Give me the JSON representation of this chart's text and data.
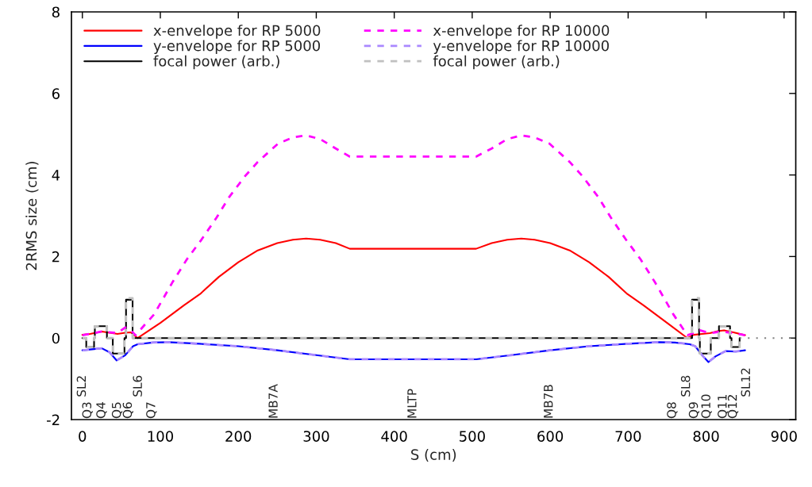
{
  "chart_data": {
    "type": "line",
    "xlabel": "S (cm)",
    "ylabel": "2RMS size (cm)",
    "xlim": [
      -14,
      915
    ],
    "ylim": [
      -2,
      8
    ],
    "xticks": [
      0,
      100,
      200,
      300,
      400,
      500,
      600,
      700,
      800,
      900
    ],
    "yticks": [
      -2,
      0,
      2,
      4,
      6,
      8
    ],
    "grid": false,
    "legend": "top left",
    "series": [
      {
        "name": "x-envelope for RP 5000",
        "color": "#ff0000",
        "line_style": "solid",
        "x": [
          0,
          10,
          25,
          35,
          45,
          55,
          62,
          71,
          100,
          130,
          151,
          175,
          200,
          225,
          250,
          270,
          287,
          305,
          325,
          343,
          505,
          525,
          545,
          563,
          580,
          600,
          625,
          650,
          675,
          699,
          720,
          750,
          776,
          784,
          795,
          805,
          815,
          823,
          835,
          850
        ],
        "values": [
          0.08,
          0.1,
          0.16,
          0.13,
          0.1,
          0.13,
          0.14,
          0.0,
          0.37,
          0.8,
          1.08,
          1.5,
          1.86,
          2.15,
          2.33,
          2.41,
          2.44,
          2.41,
          2.33,
          2.19,
          2.19,
          2.33,
          2.41,
          2.44,
          2.41,
          2.33,
          2.15,
          1.86,
          1.5,
          1.08,
          0.8,
          0.37,
          0.0,
          0.08,
          0.1,
          0.12,
          0.17,
          0.19,
          0.14,
          0.07
        ]
      },
      {
        "name": "y-envelope for RP 5000",
        "color": "#0000ff",
        "line_style": "solid",
        "x": [
          0,
          15,
          25,
          35,
          44,
          55,
          65,
          71,
          90,
          110,
          150,
          200,
          250,
          300,
          343,
          505,
          550,
          600,
          650,
          700,
          740,
          760,
          779,
          786,
          795,
          803,
          812,
          825,
          838,
          850
        ],
        "values": [
          -0.3,
          -0.27,
          -0.25,
          -0.35,
          -0.55,
          -0.42,
          -0.2,
          -0.15,
          -0.11,
          -0.1,
          -0.14,
          -0.2,
          -0.3,
          -0.42,
          -0.52,
          -0.52,
          -0.42,
          -0.3,
          -0.2,
          -0.14,
          -0.1,
          -0.11,
          -0.15,
          -0.2,
          -0.42,
          -0.59,
          -0.45,
          -0.32,
          -0.33,
          -0.3
        ]
      },
      {
        "name": "focal power (arb.)",
        "color": "#000000",
        "type": "step",
        "line_style": "solid",
        "x": [
          0,
          5,
          15,
          16,
          31.5,
          39,
          54,
          56,
          64.4,
          782,
          791,
          792,
          806,
          816.5,
          830.7,
          832.6,
          843
        ],
        "values": [
          0,
          -0.22,
          0,
          0.29,
          0,
          -0.38,
          0,
          0.94,
          0,
          0.94,
          0,
          -0.38,
          0,
          0.29,
          0,
          -0.22,
          0
        ]
      },
      {
        "name": "x-envelope for RP 10000",
        "color": "#ff00ff",
        "line_style": "dashed",
        "x": [
          0,
          25,
          45,
          55,
          62,
          68,
          92,
          115,
          134,
          153,
          172,
          188,
          209,
          225,
          251,
          270,
          287,
          305,
          325,
          343,
          505,
          525,
          545,
          563,
          580,
          599,
          625,
          641,
          662,
          678,
          697,
          716,
          735,
          758,
          776,
          784,
          792,
          805,
          820,
          835,
          850
        ],
        "values": [
          0.07,
          0.16,
          0.12,
          0.26,
          0.2,
          0.07,
          0.58,
          1.35,
          1.93,
          2.42,
          2.95,
          3.45,
          3.98,
          4.32,
          4.77,
          4.92,
          4.97,
          4.88,
          4.65,
          4.45,
          4.45,
          4.65,
          4.88,
          4.97,
          4.92,
          4.77,
          4.32,
          3.98,
          3.45,
          2.95,
          2.42,
          1.93,
          1.35,
          0.58,
          0.07,
          0.12,
          0.19,
          0.12,
          0.16,
          0.12,
          0.07
        ]
      },
      {
        "name": "y-envelope for RP 10000",
        "color": "#aa88ff",
        "line_style": "dashed",
        "x": [
          0,
          15,
          25,
          35,
          44,
          55,
          65,
          71,
          90,
          110,
          150,
          200,
          250,
          300,
          343,
          505,
          550,
          600,
          650,
          700,
          740,
          760,
          779,
          786,
          795,
          803,
          812,
          825,
          838,
          850
        ],
        "values": [
          -0.3,
          -0.27,
          -0.25,
          -0.35,
          -0.55,
          -0.42,
          -0.2,
          -0.15,
          -0.11,
          -0.1,
          -0.14,
          -0.2,
          -0.3,
          -0.42,
          -0.52,
          -0.52,
          -0.42,
          -0.3,
          -0.2,
          -0.14,
          -0.1,
          -0.11,
          -0.15,
          -0.2,
          -0.42,
          -0.59,
          -0.45,
          -0.32,
          -0.33,
          -0.3
        ]
      },
      {
        "name": "focal power (arb.)",
        "color": "#c0c0c0",
        "type": "step",
        "line_style": "dashed",
        "x": [
          0,
          5,
          15,
          16,
          31.5,
          39,
          54,
          56,
          64.4,
          782,
          791,
          792,
          806,
          816.5,
          830.7,
          832.6,
          843
        ],
        "values": [
          0,
          -0.22,
          0,
          0.29,
          0,
          -0.38,
          0,
          0.98,
          0,
          0.98,
          0,
          -0.38,
          0,
          0.29,
          0,
          -0.22,
          0
        ]
      },
      {
        "color": "#808080",
        "line_style": "dotted",
        "x": [
          843,
          915
        ],
        "values": [
          0,
          0
        ]
      }
    ],
    "annotations": [
      "SL2",
      "Q3",
      "Q4",
      "Q5",
      "Q6",
      "SL6",
      "Q7",
      "MB7A",
      "MLTP",
      "MB7B",
      "Q8",
      "SL8",
      "Q9",
      "Q10",
      "Q11",
      "Q12",
      "SL12"
    ]
  }
}
